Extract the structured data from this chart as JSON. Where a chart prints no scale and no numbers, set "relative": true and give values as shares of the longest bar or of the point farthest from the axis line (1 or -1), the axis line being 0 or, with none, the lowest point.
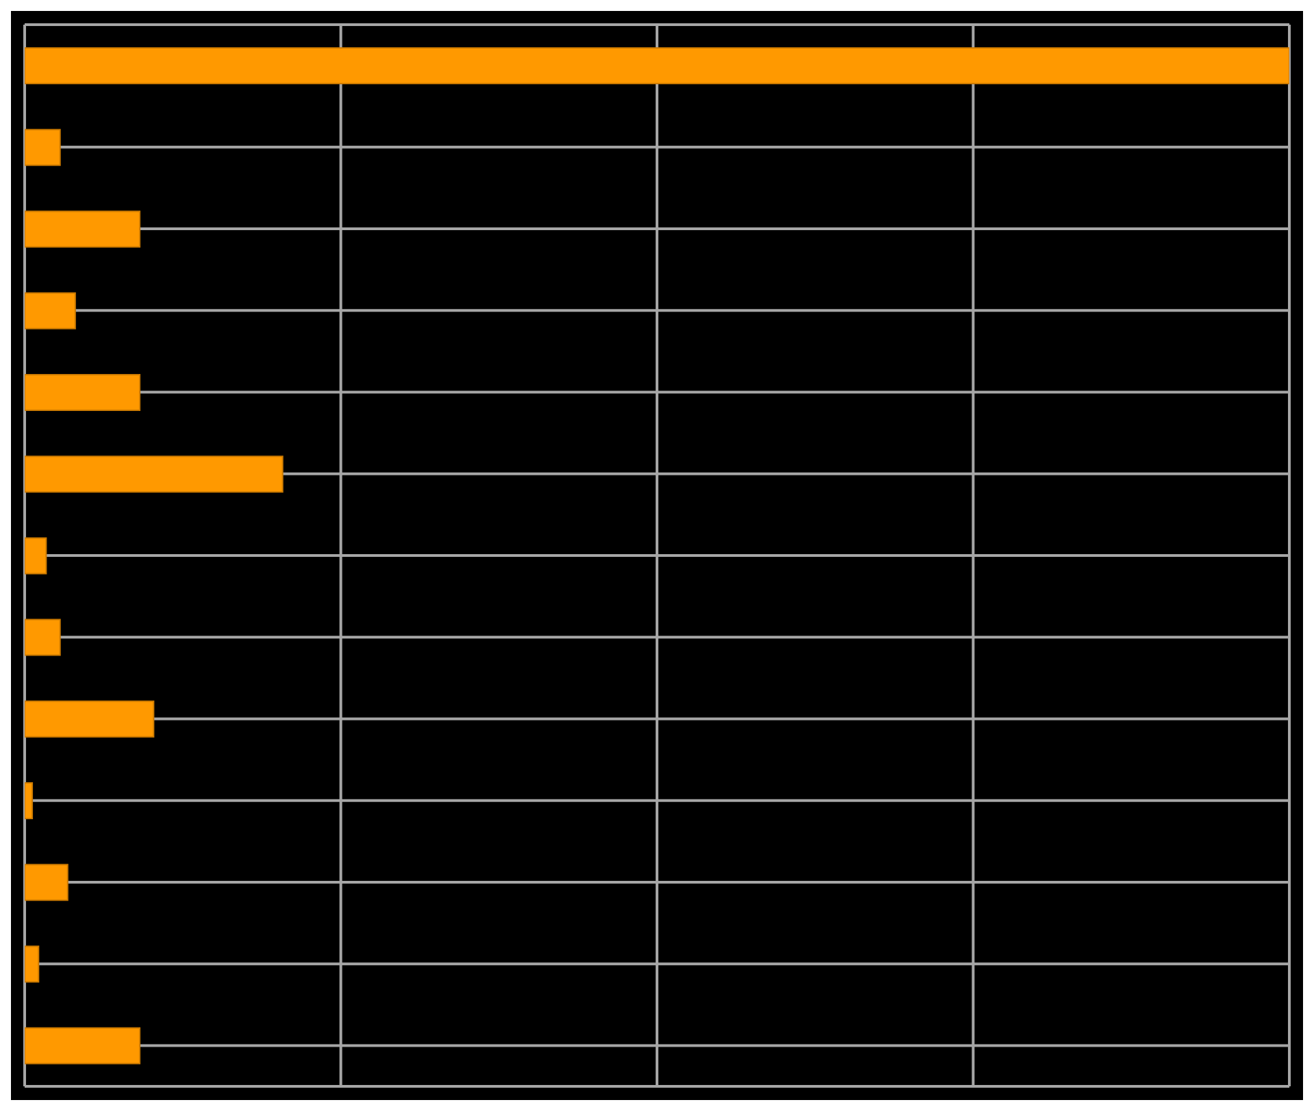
{
  "chart_data": {
    "type": "bar",
    "orientation": "horizontal",
    "relative": true,
    "grid": true,
    "categories": [
      null,
      null,
      null,
      null,
      null,
      null,
      null,
      null,
      null,
      null,
      null,
      null,
      null
    ],
    "values": [
      1,
      0.028,
      0.091,
      0.04,
      0.091,
      0.204,
      0.017,
      0.028,
      0.102,
      0.006,
      0.034,
      0.011,
      0.091
    ],
    "color": "#ff9900"
  }
}
